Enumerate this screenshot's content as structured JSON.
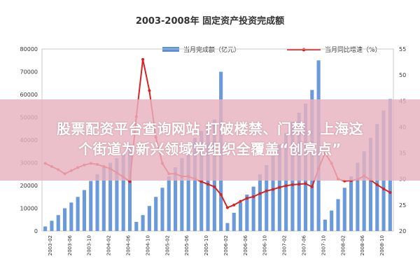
{
  "chart_data": {
    "type": "bar+line",
    "title": "2003-2008年 固定资产投资完成额",
    "legend": {
      "placement": "top",
      "bar_label": "当月完成额（亿元）",
      "line_label": "当月同比增速（%）"
    },
    "y_left": {
      "ticks": [
        "0",
        "10000",
        "20000",
        "30000",
        "40000",
        "50000",
        "60000",
        "70000",
        "80000"
      ],
      "lim": [
        0,
        80000
      ]
    },
    "y_right": {
      "ticks": [
        "20",
        "25",
        "30",
        "35",
        "40",
        "45",
        "50",
        "55"
      ],
      "lim": [
        20,
        55
      ]
    },
    "x_ticks": [
      "2003-02",
      "2003-06",
      "2003-10",
      "2004-02",
      "2004-06",
      "2004-10",
      "2005-02",
      "2005-06",
      "2005-10",
      "2006-02",
      "2006-06",
      "2006-10",
      "2007-02",
      "2007-06",
      "2007-10",
      "2008-02",
      "2008-06",
      "2008-10"
    ],
    "series": [
      {
        "kind": "bar",
        "color": "#5b8fd6",
        "values": [
          2000,
          4500,
          7000,
          10000,
          12500,
          15000,
          18000,
          22000,
          25000,
          28000,
          30000,
          32000,
          34000,
          38000,
          4000,
          7000,
          11000,
          15000,
          19000,
          24000,
          28000,
          32000,
          36000,
          41000,
          44000,
          46000,
          49000,
          70000,
          3500,
          8000,
          12500,
          16000,
          19500,
          25000,
          29000,
          33000,
          38000,
          43000,
          48000,
          52000,
          56000,
          62000,
          75000,
          5000,
          9000,
          14000,
          19000,
          24000,
          30000,
          35000,
          41000,
          47000,
          53000,
          58000
        ]
      },
      {
        "kind": "line",
        "color": "#d62424",
        "values": [
          33.0,
          32.4,
          31.8,
          31.0,
          31.6,
          32.2,
          32.7,
          33.0,
          32.8,
          32.4,
          32.0,
          31.2,
          30.4,
          29.5,
          42.0,
          53.0,
          47.0,
          38.0,
          33.0,
          31.0,
          31.0,
          30.5,
          30.5,
          30.0,
          29.5,
          29.0,
          28.5,
          27.0,
          24.5,
          25.0,
          25.7,
          26.3,
          26.6,
          27.2,
          27.7,
          28.0,
          28.4,
          28.7,
          28.9,
          29.0,
          29.1,
          28.5,
          32.0,
          35.0,
          33.0,
          30.0,
          29.6,
          29.7,
          29.9,
          30.6,
          29.8,
          28.9,
          28.1,
          27.4
        ]
      }
    ]
  },
  "overlay": {
    "line1": "股票配资平台查询网站 打破楼禁、门禁，上海这",
    "line2": "个街道为新兴领域党组织全覆盖“创亮点”"
  }
}
